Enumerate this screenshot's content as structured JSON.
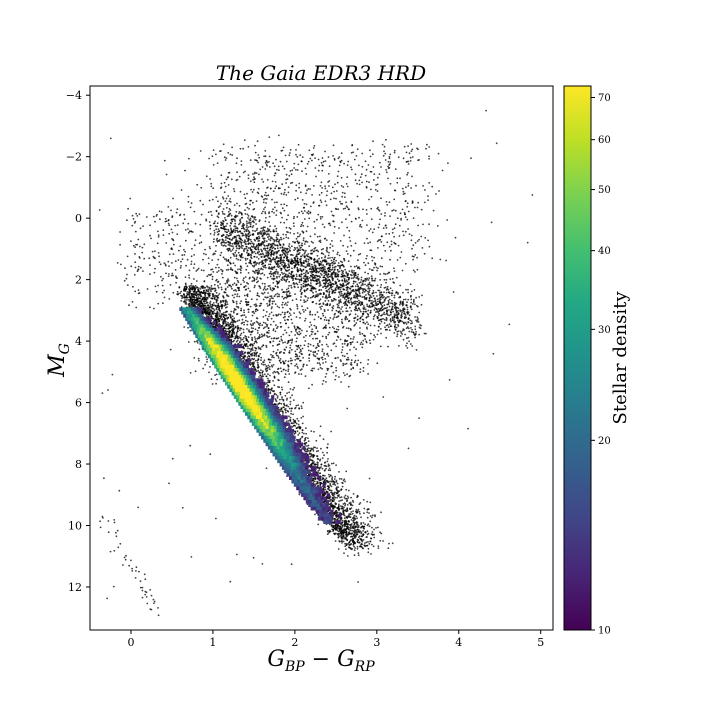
{
  "chart_data": {
    "type": "scatter",
    "title": "The Gaia EDR3 HRD",
    "xlabel": "G_{BP} − G_{RP}",
    "ylabel": "M_G",
    "xlim": [
      -0.5,
      5.15
    ],
    "ylim": [
      13.4,
      -4.3
    ],
    "y_inverted": true,
    "grid": false,
    "x_ticks": [
      0,
      1,
      2,
      3,
      4,
      5
    ],
    "y_ticks": [
      -4,
      -2,
      0,
      2,
      4,
      6,
      8,
      10,
      12
    ],
    "colorbar": {
      "label": "Stellar density",
      "scale": "log",
      "range": [
        10,
        73
      ],
      "ticks": [
        10,
        20,
        30,
        40,
        50,
        60,
        70
      ],
      "colormap": "viridis"
    },
    "series": [
      {
        "kind": "scatter",
        "color": "#000000",
        "description_points": "sparse low-density stars",
        "features": [
          {
            "region": "main sequence",
            "x_range": [
              0.6,
              2.9
            ],
            "y_range": [
              2.0,
              11.0
            ]
          },
          {
            "region": "red clump / giant branch",
            "x_range": [
              1.0,
              3.4
            ],
            "y_range": [
              -0.5,
              3.5
            ]
          },
          {
            "region": "bright giants",
            "x_range": [
              0.9,
              3.6
            ],
            "y_range": [
              -2.5,
              1.5
            ]
          },
          {
            "region": "white dwarf sequence",
            "x_range": [
              -0.35,
              0.35
            ],
            "y_range": [
              9.5,
              13.2
            ]
          }
        ]
      },
      {
        "kind": "density",
        "description_points": "2D histogram of dense main-sequence region",
        "peak_x": 1.05,
        "peak_y": 5.3,
        "peak_density": 73
      }
    ]
  }
}
